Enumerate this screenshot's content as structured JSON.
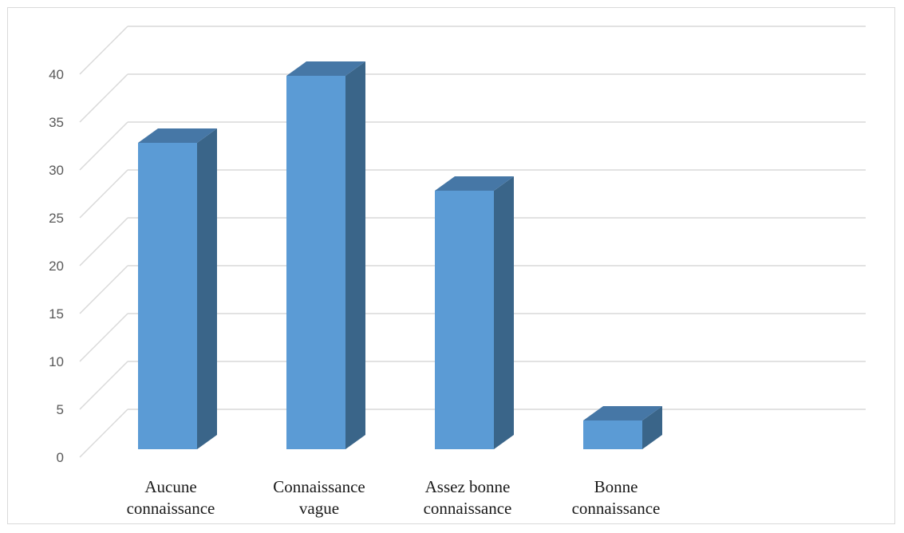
{
  "chart_data": {
    "type": "bar",
    "style": "3d-column",
    "categories": [
      [
        "Aucune",
        "connaissance"
      ],
      [
        "Connaissance",
        "vague"
      ],
      [
        "Assez bonne",
        "connaissance"
      ],
      [
        "Bonne",
        "connaissance"
      ]
    ],
    "values": [
      32,
      39,
      27,
      3
    ],
    "title": "",
    "xlabel": "",
    "ylabel": "",
    "ylim": [
      0,
      40
    ],
    "yticks": [
      0,
      5,
      10,
      15,
      20,
      25,
      30,
      35,
      40
    ],
    "grid": true,
    "legend": "none",
    "colors": {
      "bar_front": "#5b9bd5",
      "bar_side": "#3a6589",
      "bar_top": "#4677a6",
      "grid": "#d9d9d9",
      "frame": "#d9d9d9"
    }
  }
}
